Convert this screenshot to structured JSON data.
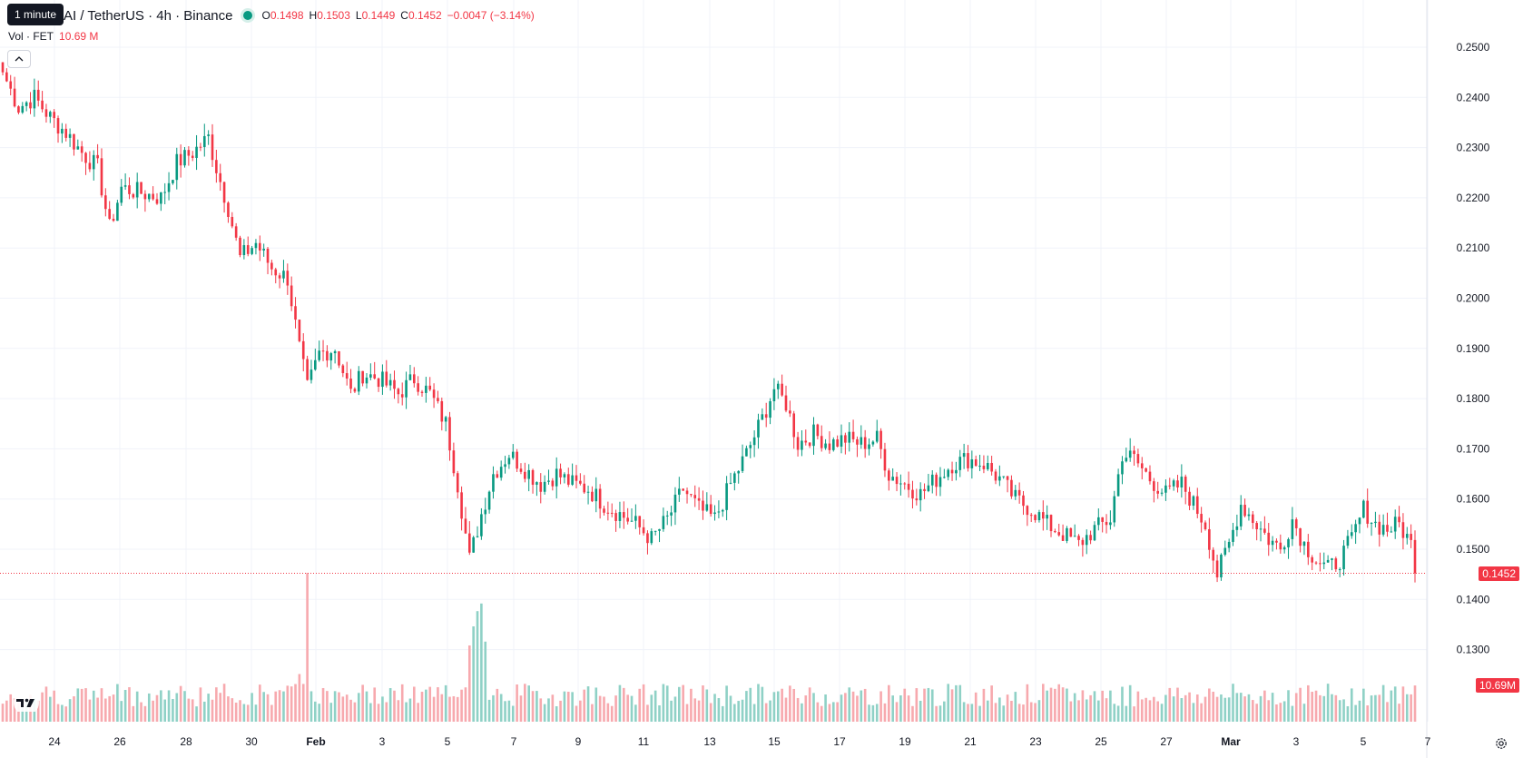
{
  "legend": {
    "tooltip": "1 minute",
    "symbol_title": "AI / TetherUS · 4h · Binance",
    "o_label": "O",
    "o_value": "0.1498",
    "h_label": "H",
    "h_value": "0.1503",
    "l_label": "L",
    "l_value": "0.1449",
    "c_label": "C",
    "c_value": "0.1452",
    "change": "−0.0047 (−3.14%)"
  },
  "volume_legend": {
    "label": "Vol · FET",
    "value": "10.69 M"
  },
  "last_price_tag": "0.1452",
  "volume_tag": "10.69M",
  "icons": {
    "collapse": "chevron-up-icon",
    "logo": "tradingview-logo-icon",
    "settings": "settings-gear-icon"
  },
  "colors": {
    "up": "#089981",
    "down": "#f23645",
    "vol_up": "#8fd1c6",
    "vol_down": "#f7a9ae",
    "grid": "#f0f3fa"
  },
  "chart_data": {
    "type": "candlestick",
    "title": "AI / TetherUS · 4h · Binance",
    "y_ticks": [
      "0.2500",
      "0.2400",
      "0.2300",
      "0.2200",
      "0.2100",
      "0.2000",
      "0.1900",
      "0.1800",
      "0.1700",
      "0.1600",
      "0.1500",
      "0.1400",
      "0.1300"
    ],
    "x_ticks": [
      "24",
      "26",
      "28",
      "30",
      "Feb",
      "3",
      "5",
      "7",
      "9",
      "11",
      "13",
      "15",
      "17",
      "19",
      "21",
      "23",
      "25",
      "27",
      "Mar",
      "3",
      "5",
      "7"
    ],
    "ylim": [
      0.128,
      0.252
    ],
    "last_price": 0.1452,
    "last_volume": "10.69M",
    "anchors": [
      [
        0,
        0.245
      ],
      [
        4,
        0.238
      ],
      [
        8,
        0.24
      ],
      [
        12,
        0.236
      ],
      [
        16,
        0.233
      ],
      [
        20,
        0.229
      ],
      [
        24,
        0.226
      ],
      [
        27,
        0.214
      ],
      [
        30,
        0.222
      ],
      [
        35,
        0.221
      ],
      [
        40,
        0.22
      ],
      [
        44,
        0.227
      ],
      [
        48,
        0.229
      ],
      [
        52,
        0.232
      ],
      [
        54,
        0.226
      ],
      [
        57,
        0.218
      ],
      [
        60,
        0.208
      ],
      [
        64,
        0.211
      ],
      [
        68,
        0.206
      ],
      [
        72,
        0.204
      ],
      [
        75,
        0.19
      ],
      [
        77,
        0.182
      ],
      [
        80,
        0.189
      ],
      [
        84,
        0.19
      ],
      [
        88,
        0.181
      ],
      [
        91,
        0.185
      ],
      [
        95,
        0.184
      ],
      [
        100,
        0.181
      ],
      [
        104,
        0.184
      ],
      [
        108,
        0.181
      ],
      [
        112,
        0.175
      ],
      [
        115,
        0.163
      ],
      [
        118,
        0.148
      ],
      [
        121,
        0.157
      ],
      [
        124,
        0.165
      ],
      [
        128,
        0.169
      ],
      [
        132,
        0.166
      ],
      [
        136,
        0.163
      ],
      [
        140,
        0.165
      ],
      [
        144,
        0.163
      ],
      [
        148,
        0.162
      ],
      [
        152,
        0.159
      ],
      [
        156,
        0.157
      ],
      [
        160,
        0.155
      ],
      [
        164,
        0.152
      ],
      [
        168,
        0.156
      ],
      [
        172,
        0.162
      ],
      [
        176,
        0.158
      ],
      [
        180,
        0.156
      ],
      [
        184,
        0.163
      ],
      [
        188,
        0.169
      ],
      [
        192,
        0.176
      ],
      [
        195,
        0.182
      ],
      [
        198,
        0.179
      ],
      [
        201,
        0.171
      ],
      [
        205,
        0.173
      ],
      [
        209,
        0.171
      ],
      [
        213,
        0.172
      ],
      [
        217,
        0.171
      ],
      [
        221,
        0.172
      ],
      [
        224,
        0.165
      ],
      [
        228,
        0.163
      ],
      [
        232,
        0.161
      ],
      [
        236,
        0.164
      ],
      [
        240,
        0.167
      ],
      [
        244,
        0.168
      ],
      [
        248,
        0.167
      ],
      [
        252,
        0.164
      ],
      [
        256,
        0.16
      ],
      [
        260,
        0.158
      ],
      [
        264,
        0.155
      ],
      [
        268,
        0.153
      ],
      [
        272,
        0.151
      ],
      [
        276,
        0.154
      ],
      [
        280,
        0.156
      ],
      [
        283,
        0.169
      ],
      [
        286,
        0.168
      ],
      [
        290,
        0.164
      ],
      [
        294,
        0.161
      ],
      [
        298,
        0.163
      ],
      [
        301,
        0.159
      ],
      [
        304,
        0.155
      ],
      [
        307,
        0.145
      ],
      [
        310,
        0.151
      ],
      [
        313,
        0.159
      ],
      [
        316,
        0.156
      ],
      [
        320,
        0.152
      ],
      [
        323,
        0.15
      ],
      [
        326,
        0.156
      ],
      [
        329,
        0.151
      ],
      [
        332,
        0.148
      ],
      [
        335,
        0.146
      ],
      [
        338,
        0.148
      ],
      [
        341,
        0.152
      ],
      [
        344,
        0.158
      ],
      [
        347,
        0.155
      ],
      [
        350,
        0.154
      ],
      [
        353,
        0.155
      ],
      [
        356,
        0.151
      ],
      [
        357,
        0.1452
      ]
    ],
    "volume_spikes": [
      [
        77,
        0.78
      ],
      [
        118,
        0.4
      ],
      [
        119,
        0.5
      ],
      [
        120,
        0.58
      ],
      [
        121,
        0.62
      ],
      [
        122,
        0.42
      ],
      [
        75,
        0.25
      ]
    ]
  }
}
